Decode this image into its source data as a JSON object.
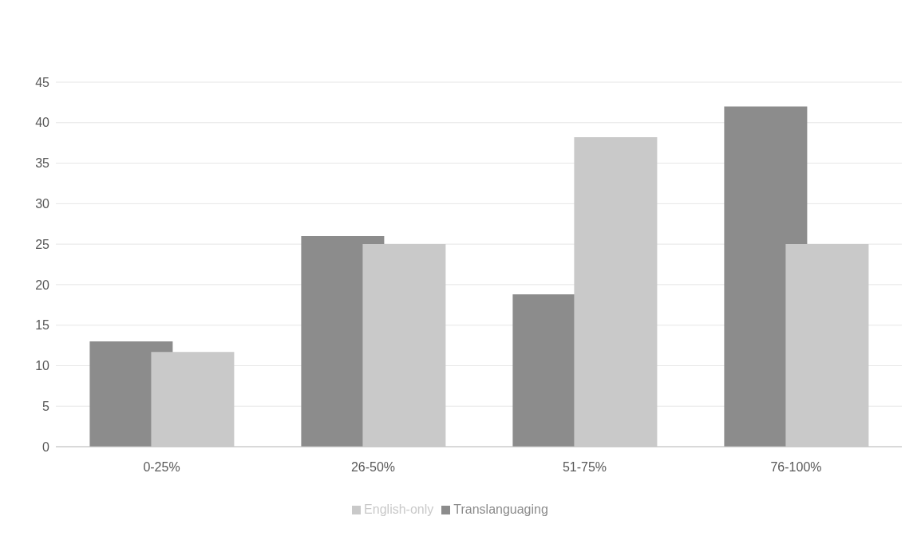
{
  "chart_data": {
    "type": "bar",
    "categories": [
      "0-25%",
      "26-50%",
      "51-75%",
      "76-100%"
    ],
    "series": [
      {
        "name": "Translanguaging",
        "color": "#8c8c8c",
        "values": [
          13,
          26,
          18.8,
          42
        ]
      },
      {
        "name": "English-only",
        "color": "#c9c9c9",
        "values": [
          11.7,
          25,
          38.2,
          25
        ]
      }
    ],
    "ylim": [
      0,
      45
    ],
    "yticks": [
      0,
      5,
      10,
      15,
      20,
      25,
      30,
      35,
      40,
      45
    ],
    "grid": "y",
    "legend": "bottom"
  }
}
